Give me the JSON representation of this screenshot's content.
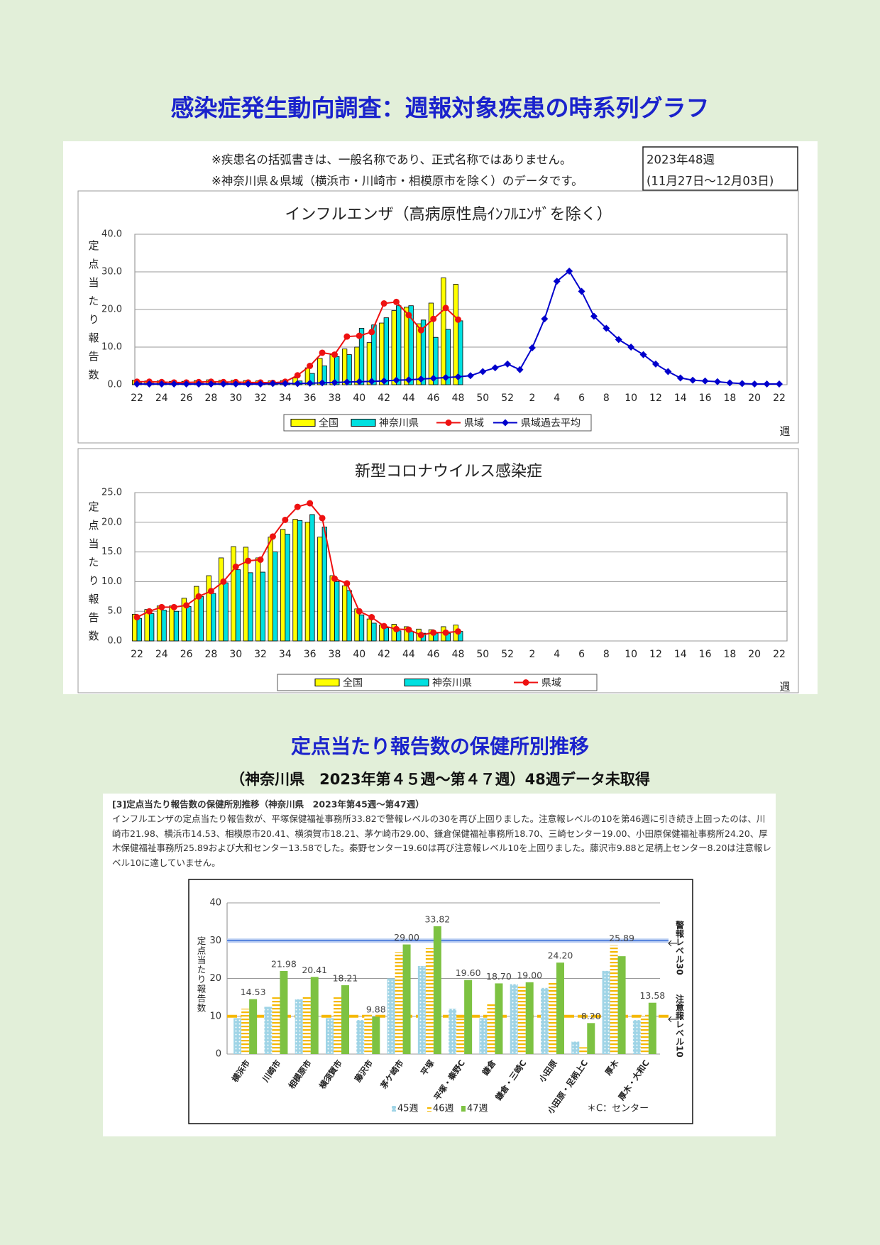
{
  "header": {
    "title": "感染症発生動向調査：週報対象疾患の時系列グラフ"
  },
  "notes": [
    "※疾患名の括弧書きは、一般名称であり、正式名称ではありません。",
    "※神奈川県＆県域（横浜市・川崎市・相模原市を除く）のデータです。"
  ],
  "period": {
    "week": "2023年48週",
    "dates": "(11月27日～12月03日)"
  },
  "chart_data": [
    {
      "type": "combo",
      "title": "インフルエンザ（高病原性鳥ｲﾝﾌﾙｴﾝｻﾞを除く）",
      "ylabel": "定点当たり報告数",
      "xlabel": "週",
      "legend": "bottom",
      "grid": true,
      "categories": [
        "22",
        null,
        "24",
        null,
        "26",
        null,
        "28",
        null,
        "30",
        null,
        "32",
        null,
        "34",
        null,
        "36",
        null,
        "38",
        null,
        "40",
        null,
        "42",
        null,
        "44",
        null,
        "46",
        null,
        "48",
        null,
        "50",
        null,
        "52",
        null,
        "2",
        null,
        "4",
        null,
        "6",
        null,
        "8",
        null,
        "10",
        null,
        "12",
        null,
        "14",
        null,
        "16",
        null,
        "18",
        null,
        "20",
        null,
        "22"
      ],
      "ylim": [
        0,
        40
      ],
      "yticks": [
        {
          "value": 0,
          "label": "0.0"
        },
        {
          "value": 10,
          "label": "10.0"
        },
        {
          "value": 20,
          "label": "20.0"
        },
        {
          "value": 30,
          "label": "30.0"
        },
        {
          "value": 40,
          "label": "40.0"
        }
      ],
      "series": [
        {
          "name": "全国",
          "kind": "bar",
          "color": "#ffff00",
          "values": [
            1.2,
            1.0,
            1.0,
            0.9,
            0.9,
            1.1,
            1.3,
            1.2,
            1.2,
            1.1,
            1.0,
            1.0,
            1.1,
            1.8,
            4.5,
            7.0,
            8.0,
            9.5,
            10.0,
            11.2,
            16.4,
            19.7,
            20.6,
            16.2,
            21.7,
            28.4,
            26.7,
            null,
            null,
            null,
            null,
            null,
            null,
            null,
            null,
            null,
            null,
            null,
            null,
            null,
            null,
            null,
            null,
            null,
            null,
            null,
            null,
            null,
            null,
            null,
            null,
            null,
            null
          ]
        },
        {
          "name": "神奈川県",
          "kind": "bar",
          "color": "#00e0e0",
          "values": [
            0.5,
            0.4,
            0.4,
            0.4,
            0.3,
            0.4,
            0.5,
            0.5,
            0.5,
            0.5,
            0.4,
            0.4,
            0.5,
            1.0,
            3.0,
            5.0,
            7.5,
            8.0,
            15.0,
            15.9,
            17.8,
            21.0,
            21.0,
            17.2,
            12.6,
            14.7,
            17.0,
            null,
            null,
            null,
            null,
            null,
            null,
            null,
            null,
            null,
            null,
            null,
            null,
            null,
            null,
            null,
            null,
            null,
            null,
            null,
            null,
            null,
            null,
            null,
            null,
            null,
            null
          ]
        },
        {
          "name": "県域",
          "kind": "line",
          "marker": "circle",
          "color": "#ee1111",
          "values": [
            0.8,
            0.8,
            0.7,
            0.6,
            0.6,
            0.7,
            0.8,
            0.7,
            0.7,
            0.6,
            0.6,
            0.5,
            0.8,
            2.5,
            5.0,
            8.5,
            8.0,
            12.8,
            13.0,
            14.0,
            21.6,
            22.0,
            18.5,
            14.5,
            17.5,
            20.4,
            17.3,
            null,
            null,
            null,
            null,
            null,
            null,
            null,
            null,
            null,
            null,
            null,
            null,
            null,
            null,
            null,
            null,
            null,
            null,
            null,
            null,
            null,
            null,
            null,
            null,
            null,
            null
          ]
        },
        {
          "name": "県域過去平均",
          "kind": "line",
          "marker": "diamond",
          "color": "#0000cc",
          "values": [
            0.2,
            0.2,
            0.2,
            0.2,
            0.2,
            0.2,
            0.2,
            0.2,
            0.2,
            0.2,
            0.2,
            0.3,
            0.3,
            0.3,
            0.4,
            0.5,
            0.6,
            0.7,
            0.8,
            0.9,
            1.0,
            1.2,
            1.3,
            1.5,
            1.7,
            1.9,
            2.1,
            2.4,
            3.5,
            4.5,
            5.5,
            4.0,
            9.8,
            17.5,
            27.5,
            30.2,
            24.8,
            18.2,
            15.0,
            12.0,
            10.0,
            8.0,
            5.5,
            3.5,
            1.8,
            1.2,
            1.0,
            0.8,
            0.5,
            0.3,
            0.2,
            0.2,
            0.2
          ]
        }
      ]
    },
    {
      "type": "combo",
      "title": "新型コロナウイルス感染症",
      "ylabel": "定点当たり報告数",
      "xlabel": "週",
      "legend": "bottom",
      "grid": true,
      "categories": [
        "22",
        null,
        "24",
        null,
        "26",
        null,
        "28",
        null,
        "30",
        null,
        "32",
        null,
        "34",
        null,
        "36",
        null,
        "38",
        null,
        "40",
        null,
        "42",
        null,
        "44",
        null,
        "46",
        null,
        "48",
        null,
        "50",
        null,
        "52",
        null,
        "2",
        null,
        "4",
        null,
        "6",
        null,
        "8",
        null,
        "10",
        null,
        "12",
        null,
        "14",
        null,
        "16",
        null,
        "18",
        null,
        "20",
        null,
        "22"
      ],
      "ylim": [
        0,
        25
      ],
      "yticks": [
        {
          "value": 0,
          "label": "0.0"
        },
        {
          "value": 5,
          "label": "5.0"
        },
        {
          "value": 10,
          "label": "10.0"
        },
        {
          "value": 15,
          "label": "15.0"
        },
        {
          "value": 20,
          "label": "20.0"
        },
        {
          "value": 25,
          "label": "25.0"
        }
      ],
      "series": [
        {
          "name": "全国",
          "kind": "bar",
          "color": "#ffff00",
          "values": [
            4.5,
            5.3,
            5.9,
            5.9,
            7.2,
            9.2,
            11.0,
            14.0,
            15.9,
            15.8,
            14.0,
            17.5,
            18.8,
            20.5,
            20.0,
            17.5,
            11.0,
            9.3,
            5.4,
            3.7,
            2.7,
            2.8,
            2.4,
            2.0,
            1.9,
            2.4,
            2.7,
            null,
            null,
            null,
            null,
            null,
            null,
            null,
            null,
            null,
            null,
            null,
            null,
            null,
            null,
            null,
            null,
            null,
            null,
            null,
            null,
            null,
            null,
            null,
            null,
            null,
            null
          ]
        },
        {
          "name": "神奈川県",
          "kind": "bar",
          "color": "#00e0e0",
          "values": [
            3.8,
            4.6,
            5.2,
            5.0,
            5.8,
            7.5,
            8.0,
            9.8,
            12.0,
            11.5,
            11.6,
            15.0,
            18.0,
            20.3,
            21.3,
            19.2,
            10.0,
            8.5,
            4.4,
            3.0,
            2.2,
            1.7,
            1.6,
            1.3,
            1.3,
            1.3,
            1.6,
            null,
            null,
            null,
            null,
            null,
            null,
            null,
            null,
            null,
            null,
            null,
            null,
            null,
            null,
            null,
            null,
            null,
            null,
            null,
            null,
            null,
            null,
            null,
            null,
            null,
            null
          ]
        },
        {
          "name": "県域",
          "kind": "line",
          "marker": "circle",
          "color": "#ee1111",
          "values": [
            4.0,
            5.0,
            5.7,
            5.7,
            6.0,
            7.5,
            8.4,
            10.0,
            12.5,
            13.5,
            13.7,
            17.6,
            20.4,
            22.6,
            23.2,
            20.7,
            10.5,
            9.7,
            5.0,
            4.0,
            2.5,
            2.0,
            1.9,
            1.0,
            1.4,
            1.4,
            1.6,
            null,
            null,
            null,
            null,
            null,
            null,
            null,
            null,
            null,
            null,
            null,
            null,
            null,
            null,
            null,
            null,
            null,
            null,
            null,
            null,
            null,
            null,
            null,
            null,
            null,
            null
          ]
        }
      ]
    },
    {
      "type": "bar",
      "ylabel": "定点当たり報告数",
      "legend": "bottom",
      "grid": true,
      "footnote": "＊C：センター",
      "categories": [
        "横浜市",
        "川崎市",
        "相模原市",
        "横須賀市",
        "藤沢市",
        "茅ケ崎市",
        "平塚",
        "平塚・秦野C",
        "鎌倉",
        "鎌倉・三崎C",
        "小田原",
        "小田原・足柄上C",
        "厚木",
        "厚木・大和C"
      ],
      "ylim": [
        0,
        40
      ],
      "yticks": [
        0,
        10,
        20,
        30,
        40
      ],
      "reference_lines": [
        {
          "value": 30,
          "label": "警報レベル30",
          "color": "#3a6fd8"
        },
        {
          "value": 10,
          "label": "注意報レベル10",
          "color": "#f5b800"
        }
      ],
      "series": [
        {
          "name": "45週",
          "color": "#9fd4e6",
          "pattern": "dots",
          "values": [
            9.5,
            12.5,
            14.5,
            9.5,
            9.0,
            20.0,
            23.3,
            12.0,
            9.5,
            18.5,
            17.5,
            3.3,
            22.0,
            9.0
          ]
        },
        {
          "name": "46週",
          "color": "#f5b800",
          "pattern": "stripes",
          "values": [
            12.0,
            15.0,
            15.2,
            15.0,
            10.0,
            27.0,
            28.0,
            9.5,
            13.5,
            18.3,
            18.8,
            1.8,
            28.8,
            10.0
          ]
        },
        {
          "name": "47週",
          "color": "#7dc242",
          "values": [
            14.53,
            21.98,
            20.41,
            18.21,
            9.88,
            29,
            33.82,
            19.6,
            18.7,
            19,
            24.2,
            8.2,
            25.89,
            13.58
          ],
          "value_labels": [
            "14.53",
            "21.98",
            "20.41",
            "18.21",
            "9.88",
            "29.00",
            "33.82",
            "19.60",
            "18.70",
            "19.00",
            "24.20",
            "8.20",
            "25.89",
            "13.58"
          ]
        }
      ]
    }
  ],
  "section2": {
    "title": "定点当たり報告数の保健所別推移",
    "subtitle": "（神奈川県　2023年第４５週～第４７週）48週データ未取得",
    "heading": "[3]定点当たり報告数の保健所別推移（神奈川県　2023年第45週～第47週）",
    "paragraph": "インフルエンザの定点当たり報告数が、平塚保健福祉事務所33.82で警報レベルの30を再び上回りました。注意報レベルの10を第46週に引き続き上回ったのは、川崎市21.98、横浜市14.53、相模原市20.41、横須賀市18.21、茅ケ崎市29.00、鎌倉保健福祉事務所18.70、三崎センター19.00、小田原保健福祉事務所24.20、厚木保健福祉事務所25.89および大和センター13.58でした。秦野センター19.60は再び注意報レベル10を上回りました。藤沢市9.88と足柄上センター8.20は注意報レベル10に達していません。"
  }
}
